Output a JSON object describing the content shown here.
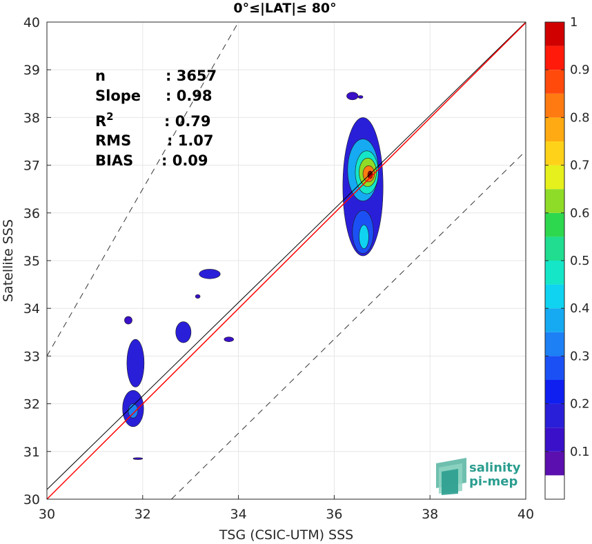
{
  "chart_data": {
    "type": "heatmap",
    "title": "0°≤|LAT|≤ 80°",
    "xlabel": "TSG (CSIC-UTM) SSS",
    "ylabel": "Satellite SSS",
    "xlim": [
      30,
      40
    ],
    "ylim": [
      30,
      40
    ],
    "xticks": [
      30,
      32,
      34,
      36,
      38,
      40
    ],
    "yticks": [
      30,
      31,
      32,
      33,
      34,
      35,
      36,
      37,
      38,
      39,
      40
    ],
    "grid": true,
    "stats": [
      {
        "label": "n",
        "sup": "",
        "value": ": 3657"
      },
      {
        "label": "Slope",
        "sup": "",
        "value": ": 0.98"
      },
      {
        "label": "R",
        "sup": "2",
        "value": ": 0.79"
      },
      {
        "label": "RMS",
        "sup": "",
        "value": ": 1.07"
      },
      {
        "label": "BIAS",
        "sup": "",
        "value": ": 0.09"
      }
    ],
    "lines": {
      "identity": {
        "x": [
          30,
          40
        ],
        "y": [
          30,
          40
        ],
        "color": "#000000"
      },
      "regression": {
        "x": [
          30,
          40
        ],
        "y": [
          30.0,
          39.9
        ],
        "color": "#ff0000"
      },
      "upper_bound": {
        "x": [
          30,
          34
        ],
        "y": [
          33,
          40
        ],
        "style": "dashed"
      },
      "lower_bound": {
        "x": [
          32.6,
          40
        ],
        "y": [
          30,
          37.3
        ],
        "style": "dashed"
      }
    },
    "colorbar": {
      "ticks": [
        "0.1",
        "0.2",
        "0.3",
        "0.4",
        "0.5",
        "0.6",
        "0.7",
        "0.8",
        "0.9",
        "1"
      ],
      "levels": [
        0,
        0.05,
        0.1,
        0.15,
        0.2,
        0.25,
        0.3,
        0.35,
        0.4,
        0.45,
        0.5,
        0.55,
        0.6,
        0.65,
        0.7,
        0.75,
        0.8,
        0.85,
        0.9,
        0.95,
        1.0
      ],
      "colors": [
        "#ffffff",
        "#5a0fae",
        "#3a10c9",
        "#2a1fd8",
        "#0f1ff0",
        "#1b50f5",
        "#1d80f5",
        "#15aaf2",
        "#0fd3f0",
        "#15e6c8",
        "#20dd90",
        "#2ed84e",
        "#8fdc28",
        "#e6f01c",
        "#ffd21a",
        "#ffaa12",
        "#ff7a10",
        "#ff4a0c",
        "#ff1a0a",
        "#d00000",
        "#800000"
      ]
    },
    "density_blobs": [
      {
        "cx": 36.75,
        "cy": 36.8,
        "rx": 0.05,
        "ry": 0.08,
        "level": 1.0
      },
      {
        "cx": 36.72,
        "cy": 36.82,
        "rx": 0.12,
        "ry": 0.17,
        "level": 0.8
      },
      {
        "cx": 36.7,
        "cy": 36.85,
        "rx": 0.18,
        "ry": 0.3,
        "level": 0.6
      },
      {
        "cx": 36.68,
        "cy": 36.85,
        "rx": 0.24,
        "ry": 0.45,
        "level": 0.45
      },
      {
        "cx": 36.6,
        "cy": 36.9,
        "rx": 0.32,
        "ry": 0.65,
        "level": 0.35
      },
      {
        "cx": 36.62,
        "cy": 35.5,
        "rx": 0.1,
        "ry": 0.25,
        "level": 0.4
      },
      {
        "cx": 36.6,
        "cy": 35.6,
        "rx": 0.22,
        "ry": 0.45,
        "level": 0.25
      },
      {
        "cx": 36.6,
        "cy": 36.55,
        "rx": 0.42,
        "ry": 1.45,
        "level": 0.15
      },
      {
        "cx": 36.38,
        "cy": 38.45,
        "rx": 0.12,
        "ry": 0.08,
        "level": 0.12
      },
      {
        "cx": 36.55,
        "cy": 38.43,
        "rx": 0.05,
        "ry": 0.03,
        "level": 0.12
      },
      {
        "cx": 31.8,
        "cy": 31.85,
        "rx": 0.1,
        "ry": 0.15,
        "level": 0.3
      },
      {
        "cx": 31.8,
        "cy": 31.9,
        "rx": 0.22,
        "ry": 0.38,
        "level": 0.15
      },
      {
        "cx": 31.85,
        "cy": 32.85,
        "rx": 0.18,
        "ry": 0.5,
        "level": 0.15
      },
      {
        "cx": 31.7,
        "cy": 33.75,
        "rx": 0.08,
        "ry": 0.08,
        "level": 0.12
      },
      {
        "cx": 31.9,
        "cy": 30.85,
        "rx": 0.1,
        "ry": 0.02,
        "level": 0.12
      },
      {
        "cx": 32.85,
        "cy": 33.5,
        "rx": 0.16,
        "ry": 0.22,
        "level": 0.15
      },
      {
        "cx": 33.4,
        "cy": 34.72,
        "rx": 0.22,
        "ry": 0.1,
        "level": 0.15
      },
      {
        "cx": 33.15,
        "cy": 34.25,
        "rx": 0.05,
        "ry": 0.04,
        "level": 0.12
      },
      {
        "cx": 33.8,
        "cy": 33.35,
        "rx": 0.1,
        "ry": 0.05,
        "level": 0.12
      }
    ]
  },
  "logo": {
    "line1": "salinity",
    "line2": "pi-mep"
  }
}
